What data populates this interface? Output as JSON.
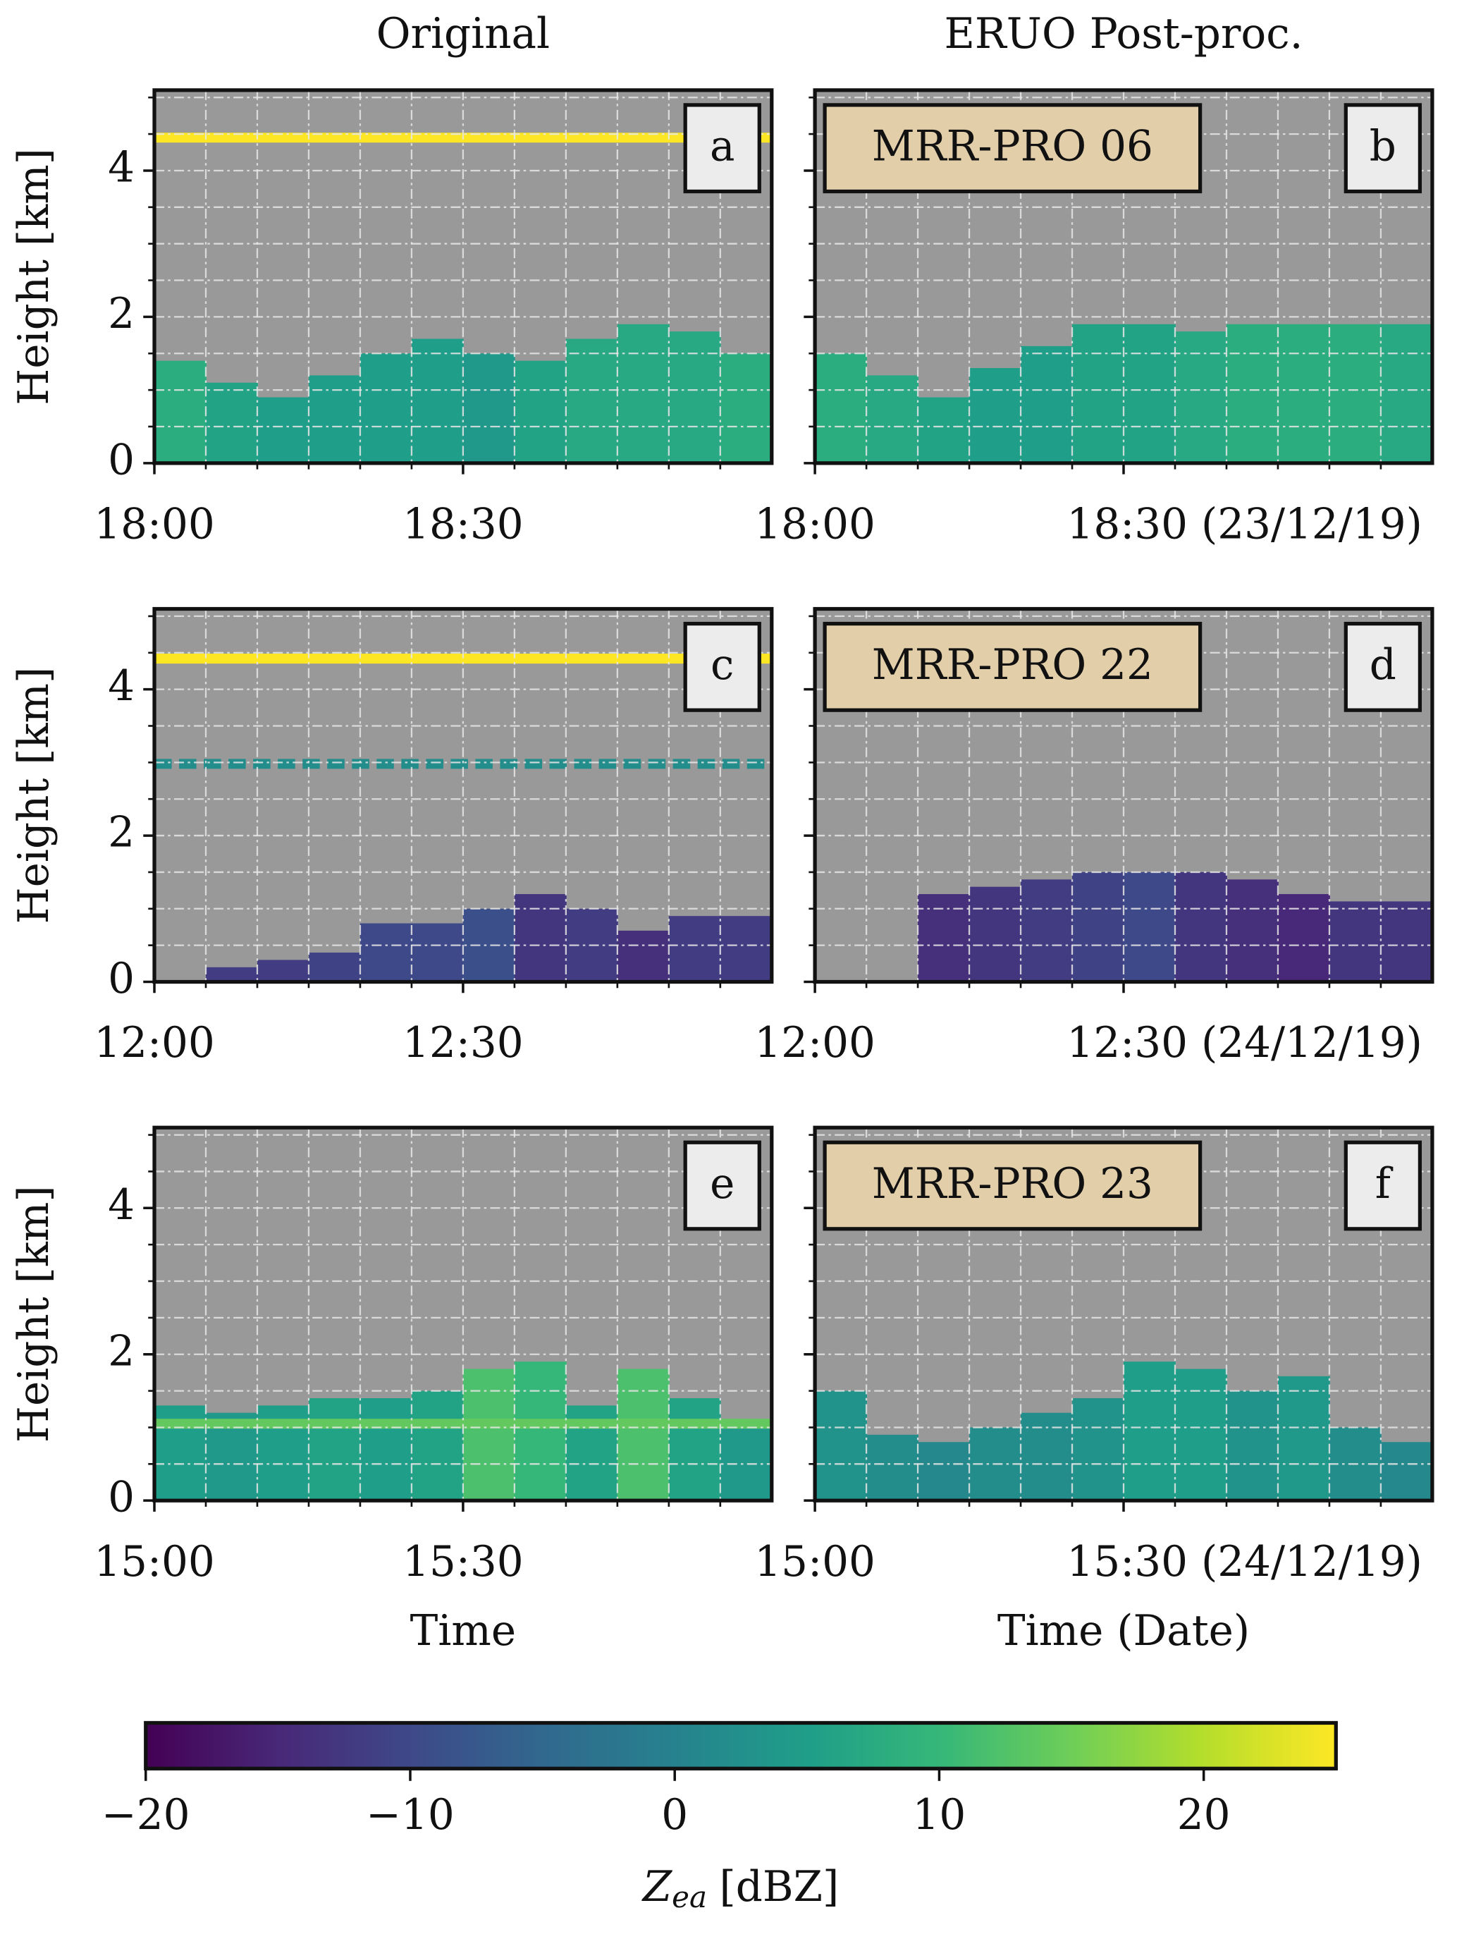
{
  "chart_data": [
    {
      "type": "heatmap",
      "title": "Original",
      "label": "a",
      "ylabel": "Height [km]",
      "show_ytick_labels": true,
      "xlim": [
        "18:00",
        "19:00"
      ],
      "xticks": [
        "18:00",
        "18:30"
      ],
      "minor_xticks": [
        "18:05",
        "18:10",
        "18:15",
        "18:20",
        "18:25",
        "18:35",
        "18:40",
        "18:45",
        "18:50",
        "18:55"
      ],
      "ylim": [
        0,
        5.1
      ],
      "yticks": [
        0,
        2,
        4
      ],
      "minor_yticks": [
        0.5,
        1,
        1.5,
        2.5,
        3,
        3.5,
        4.5,
        5
      ],
      "grid": true,
      "x": [
        "18:00",
        "18:05",
        "18:10",
        "18:15",
        "18:20",
        "18:25",
        "18:30",
        "18:35",
        "18:40",
        "18:45",
        "18:50",
        "18:55"
      ],
      "echo_top": [
        1.4,
        1.1,
        0.9,
        1.2,
        1.5,
        1.7,
        1.5,
        1.4,
        1.7,
        1.9,
        1.8,
        1.5
      ],
      "zea": [
        8,
        6,
        5,
        5,
        5,
        5,
        4,
        6,
        7,
        7,
        7,
        8
      ],
      "bands": [
        {
          "height": 4.45,
          "zea": 25
        }
      ]
    },
    {
      "type": "heatmap",
      "title": "ERUO Post-proc.",
      "label": "b",
      "annotation": "MRR-PRO 06",
      "show_ytick_labels": false,
      "xlim": [
        "18:00",
        "19:00"
      ],
      "xticks": [
        "18:00",
        {
          "value": "18:30",
          "label": "18:30 (23/12/19)"
        }
      ],
      "minor_xticks": [
        "18:05",
        "18:10",
        "18:15",
        "18:20",
        "18:25",
        "18:35",
        "18:40",
        "18:45",
        "18:50",
        "18:55"
      ],
      "ylim": [
        0,
        5.1
      ],
      "yticks": [
        0,
        2,
        4
      ],
      "minor_yticks": [
        0.5,
        1,
        1.5,
        2.5,
        3,
        3.5,
        4.5,
        5
      ],
      "grid": true,
      "x": [
        "18:00",
        "18:05",
        "18:10",
        "18:15",
        "18:20",
        "18:25",
        "18:30",
        "18:35",
        "18:40",
        "18:45",
        "18:50",
        "18:55"
      ],
      "echo_top": [
        1.5,
        1.2,
        0.9,
        1.3,
        1.6,
        1.9,
        1.9,
        1.8,
        1.9,
        1.9,
        1.9,
        1.9
      ],
      "zea": [
        8,
        7,
        6,
        5,
        5,
        6,
        6,
        7,
        8,
        8,
        8,
        7
      ]
    },
    {
      "type": "heatmap",
      "label": "c",
      "ylabel": "Height [km]",
      "show_ytick_labels": true,
      "xlim": [
        "12:00",
        "13:00"
      ],
      "xticks": [
        "12:00",
        "12:30"
      ],
      "minor_xticks": [
        "12:05",
        "12:10",
        "12:15",
        "12:20",
        "12:25",
        "12:35",
        "12:40",
        "12:45",
        "12:50",
        "12:55"
      ],
      "ylim": [
        0,
        5.1
      ],
      "yticks": [
        0,
        2,
        4
      ],
      "minor_yticks": [
        0.5,
        1,
        1.5,
        2.5,
        3,
        3.5,
        4.5,
        5
      ],
      "grid": true,
      "x": [
        "12:00",
        "12:05",
        "12:10",
        "12:15",
        "12:20",
        "12:25",
        "12:30",
        "12:35",
        "12:40",
        "12:45",
        "12:50",
        "12:55"
      ],
      "echo_top": [
        null,
        0.2,
        0.3,
        0.4,
        0.8,
        0.8,
        1.0,
        1.2,
        1.0,
        0.7,
        0.9,
        0.9
      ],
      "zea": [
        null,
        -12,
        -12,
        -11,
        -10,
        -10,
        -9,
        -13,
        -12,
        -14,
        -12,
        -12
      ],
      "bands": [
        {
          "height": 4.42,
          "zea": 25
        },
        {
          "height": 2.98,
          "zea": 2
        }
      ]
    },
    {
      "type": "heatmap",
      "label": "d",
      "annotation": "MRR-PRO 22",
      "show_ytick_labels": false,
      "xlim": [
        "12:00",
        "13:00"
      ],
      "xticks": [
        "12:00",
        {
          "value": "12:30",
          "label": "12:30 (24/12/19)"
        }
      ],
      "minor_xticks": [
        "12:05",
        "12:10",
        "12:15",
        "12:20",
        "12:25",
        "12:35",
        "12:40",
        "12:45",
        "12:50",
        "12:55"
      ],
      "ylim": [
        0,
        5.1
      ],
      "yticks": [
        0,
        2,
        4
      ],
      "minor_yticks": [
        0.5,
        1,
        1.5,
        2.5,
        3,
        3.5,
        4.5,
        5
      ],
      "grid": true,
      "x": [
        "12:00",
        "12:05",
        "12:10",
        "12:15",
        "12:20",
        "12:25",
        "12:30",
        "12:35",
        "12:40",
        "12:45",
        "12:50",
        "12:55"
      ],
      "echo_top": [
        null,
        null,
        1.2,
        1.3,
        1.4,
        1.5,
        1.5,
        1.5,
        1.4,
        1.2,
        1.1,
        1.1
      ],
      "zea": [
        null,
        null,
        -14,
        -13,
        -12,
        -11,
        -10,
        -13,
        -14,
        -15,
        -13,
        -13
      ]
    },
    {
      "type": "heatmap",
      "label": "e",
      "ylabel": "Height [km]",
      "xlabel": "Time",
      "show_ytick_labels": true,
      "xlim": [
        "15:00",
        "16:00"
      ],
      "xticks": [
        "15:00",
        "15:30"
      ],
      "minor_xticks": [
        "15:05",
        "15:10",
        "15:15",
        "15:20",
        "15:25",
        "15:35",
        "15:40",
        "15:45",
        "15:50",
        "15:55"
      ],
      "ylim": [
        0,
        5.1
      ],
      "yticks": [
        0,
        2,
        4
      ],
      "minor_yticks": [
        0.5,
        1,
        1.5,
        2.5,
        3,
        3.5,
        4.5,
        5
      ],
      "grid": true,
      "x": [
        "15:00",
        "15:05",
        "15:10",
        "15:15",
        "15:20",
        "15:25",
        "15:30",
        "15:35",
        "15:40",
        "15:45",
        "15:50",
        "15:55"
      ],
      "echo_top": [
        1.3,
        1.2,
        1.3,
        1.4,
        1.4,
        1.5,
        1.8,
        1.9,
        1.3,
        1.8,
        1.4,
        1.1
      ],
      "zea": [
        5,
        4,
        5,
        6,
        5,
        6,
        12,
        10,
        6,
        12,
        6,
        4
      ],
      "bands": [
        {
          "height": 1.05,
          "zea": 14
        }
      ]
    },
    {
      "type": "heatmap",
      "label": "f",
      "annotation": "MRR-PRO 23",
      "xlabel": "Time (Date)",
      "show_ytick_labels": false,
      "xlim": [
        "15:00",
        "16:00"
      ],
      "xticks": [
        "15:00",
        {
          "value": "15:30",
          "label": "15:30 (24/12/19)"
        }
      ],
      "minor_xticks": [
        "15:05",
        "15:10",
        "15:15",
        "15:20",
        "15:25",
        "15:35",
        "15:40",
        "15:45",
        "15:50",
        "15:55"
      ],
      "ylim": [
        0,
        5.1
      ],
      "yticks": [
        0,
        2,
        4
      ],
      "minor_yticks": [
        0.5,
        1,
        1.5,
        2.5,
        3,
        3.5,
        4.5,
        5
      ],
      "grid": true,
      "x": [
        "15:00",
        "15:05",
        "15:10",
        "15:15",
        "15:20",
        "15:25",
        "15:30",
        "15:35",
        "15:40",
        "15:45",
        "15:50",
        "15:55"
      ],
      "echo_top": [
        1.5,
        0.9,
        0.8,
        1.0,
        1.2,
        1.4,
        1.9,
        1.8,
        1.5,
        1.7,
        1.0,
        0.8
      ],
      "zea": [
        3,
        2,
        1,
        2,
        2,
        3,
        5,
        5,
        3,
        4,
        2,
        1
      ]
    },
    {
      "type": "colorbar",
      "colormap": "viridis",
      "xlabel": {
        "symbol": "Z",
        "subscript": "ea",
        "unit": "[dBZ]"
      },
      "xlim": [
        -20,
        25
      ],
      "xticks": [
        {
          "value": -20,
          "label": "−20"
        },
        {
          "value": -10,
          "label": "−10"
        },
        0,
        10,
        20
      ]
    }
  ]
}
